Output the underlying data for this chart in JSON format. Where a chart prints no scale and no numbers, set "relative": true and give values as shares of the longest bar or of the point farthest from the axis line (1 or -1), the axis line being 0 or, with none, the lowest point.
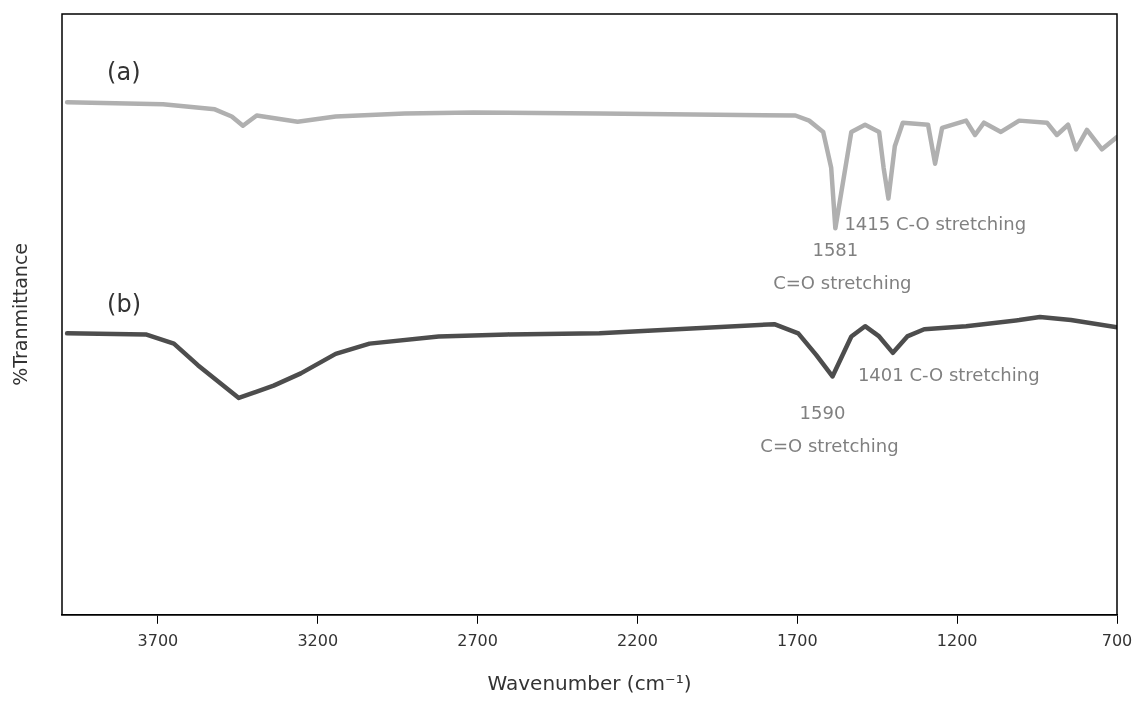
{
  "chart_data": {
    "type": "line",
    "relative": true,
    "xlabel": "Wavenumber (cm⁻¹)",
    "ylabel": "%Tranmittance",
    "xlim": [
      4000,
      700
    ],
    "xticks": [
      3700,
      3200,
      2700,
      2200,
      1700,
      1200,
      700
    ],
    "grid": false,
    "legend": false,
    "marker": "none",
    "line_style": "solid",
    "series": [
      {
        "name": "(a)",
        "color": "#b0b0b0",
        "x": [
          3984,
          3684,
          3522,
          3469,
          3434,
          3391,
          3263,
          3144,
          2928,
          2713,
          2319,
          1706,
          1663,
          1619,
          1594,
          1581,
          1531,
          1488,
          1444,
          1430,
          1415,
          1395,
          1370,
          1291,
          1269,
          1247,
          1172,
          1144,
          1116,
          1063,
          1006,
          919,
          888,
          853,
          828,
          794,
          747,
          700
        ],
        "values": [
          1.0,
          0.996,
          0.986,
          0.972,
          0.954,
          0.974,
          0.962,
          0.972,
          0.978,
          0.98,
          0.978,
          0.974,
          0.964,
          0.942,
          0.872,
          0.754,
          0.942,
          0.956,
          0.942,
          0.872,
          0.812,
          0.914,
          0.96,
          0.956,
          0.88,
          0.95,
          0.964,
          0.936,
          0.96,
          0.942,
          0.964,
          0.96,
          0.936,
          0.956,
          0.908,
          0.946,
          0.908,
          0.932
        ]
      },
      {
        "name": "(b)",
        "color": "#4d4d4d",
        "x": [
          3984,
          3738,
          3650,
          3575,
          3447,
          3338,
          3253,
          3144,
          3038,
          2822,
          2606,
          2319,
          1772,
          1697,
          1641,
          1590,
          1531,
          1488,
          1444,
          1401,
          1356,
          1303,
          1172,
          1006,
          941,
          844,
          700
        ],
        "values": [
          0.549,
          0.547,
          0.529,
          0.487,
          0.423,
          0.447,
          0.471,
          0.509,
          0.529,
          0.543,
          0.547,
          0.549,
          0.567,
          0.549,
          0.507,
          0.465,
          0.543,
          0.563,
          0.543,
          0.511,
          0.543,
          0.557,
          0.563,
          0.575,
          0.581,
          0.575,
          0.561
        ]
      }
    ],
    "annotations": [
      {
        "text": "1415 C-O stretching",
        "x": 1415,
        "y": 0.812
      },
      {
        "text": "1581\nC=O stretching",
        "x": 1581,
        "y": 0.754
      },
      {
        "text": "1401 C-O stretching",
        "x": 1401,
        "y": 0.511
      },
      {
        "text": "1590\nC=O stretching",
        "x": 1590,
        "y": 0.465
      }
    ]
  }
}
